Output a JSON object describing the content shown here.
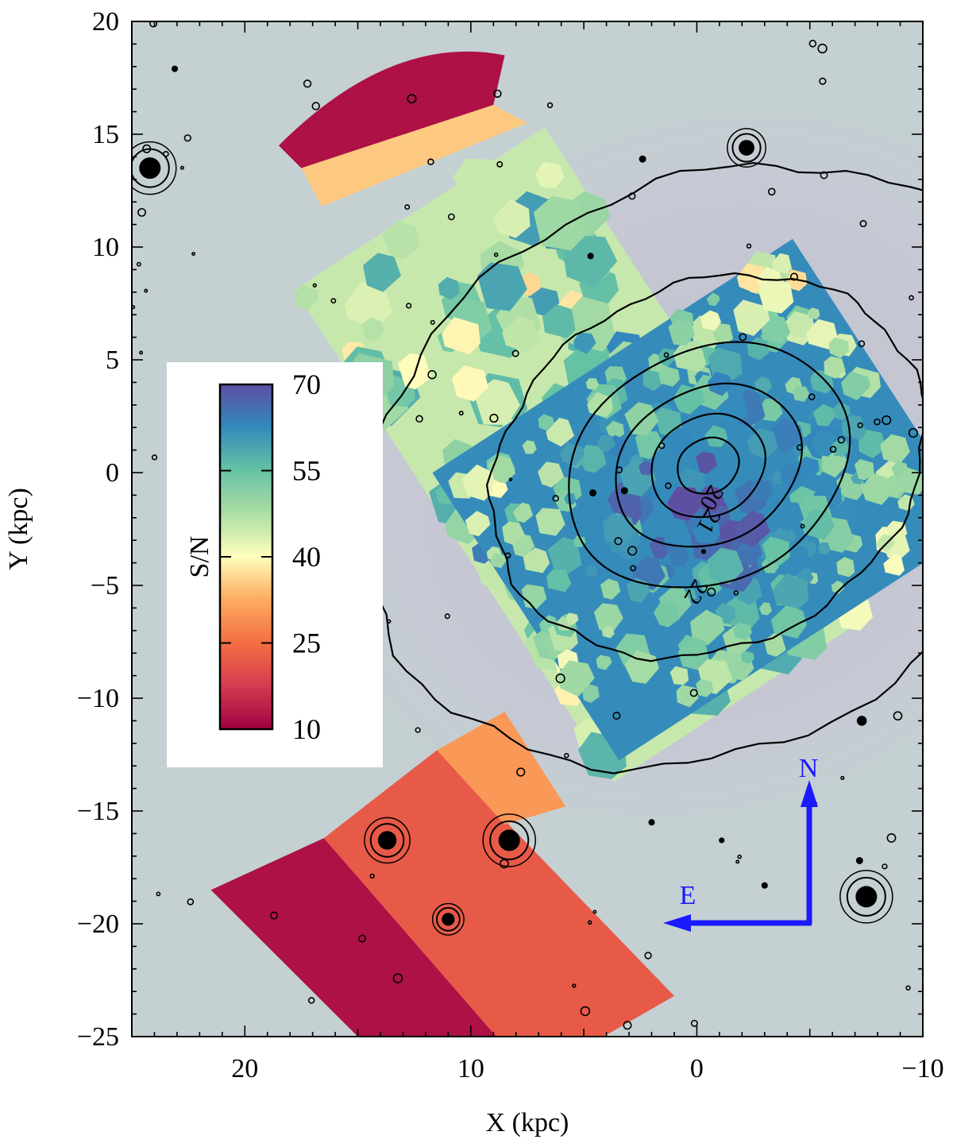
{
  "chart_data": {
    "type": "map",
    "xlabel": "X (kpc)",
    "ylabel": "Y (kpc)",
    "xlim": [
      25,
      -10
    ],
    "ylim": [
      -25,
      20
    ],
    "x_ticks": [
      {
        "value": 20,
        "label": "20"
      },
      {
        "value": 10,
        "label": "10"
      },
      {
        "value": 0,
        "label": "0"
      },
      {
        "value": -10,
        "label": "−10"
      }
    ],
    "y_ticks": [
      {
        "value": 20,
        "label": "20"
      },
      {
        "value": 15,
        "label": "15"
      },
      {
        "value": 10,
        "label": "10"
      },
      {
        "value": 5,
        "label": "5"
      },
      {
        "value": 0,
        "label": "0"
      },
      {
        "value": -5,
        "label": "−5"
      },
      {
        "value": -10,
        "label": "−10"
      },
      {
        "value": -15,
        "label": "−15"
      },
      {
        "value": -20,
        "label": "−20"
      },
      {
        "value": -25,
        "label": "−25"
      }
    ],
    "colorbar": {
      "label": "S/N",
      "range": [
        10,
        70
      ],
      "ticks": [
        {
          "value": 70,
          "label": "70"
        },
        {
          "value": 55,
          "label": "55"
        },
        {
          "value": 40,
          "label": "40"
        },
        {
          "value": 25,
          "label": "25"
        },
        {
          "value": 10,
          "label": "10"
        }
      ],
      "colormap": "Spectral",
      "placement": "left"
    },
    "isophote_center": [
      -0.5,
      0.3
    ],
    "isophotes": [
      {
        "semi_major": 1.4,
        "semi_minor": 1.2,
        "label": "20"
      },
      {
        "semi_major": 2.6,
        "semi_minor": 2.2,
        "label": "21"
      },
      {
        "semi_major": 4.3,
        "semi_minor": 3.4,
        "label": ""
      },
      {
        "semi_major": 6.5,
        "semi_minor": 5.1,
        "label": "22"
      },
      {
        "semi_major": 10,
        "semi_minor": 8,
        "label": ""
      },
      {
        "semi_major": 16,
        "semi_minor": 12.5,
        "label": ""
      }
    ],
    "regions": [
      {
        "name": "central field",
        "sn_mean": 62
      },
      {
        "name": "outer field",
        "sn_mean": 45
      },
      {
        "name": "north-east sector",
        "sn_levels": [
          12,
          35
        ]
      },
      {
        "name": "south sector",
        "sn_levels": [
          12,
          22,
          30
        ]
      }
    ],
    "compass": {
      "north": "N",
      "east": "E",
      "color": "#1a1aff"
    },
    "colors": {
      "sky_background": "#c4d0d2",
      "galaxy_halo": "#c9cbd6",
      "contours": "#000000"
    }
  }
}
